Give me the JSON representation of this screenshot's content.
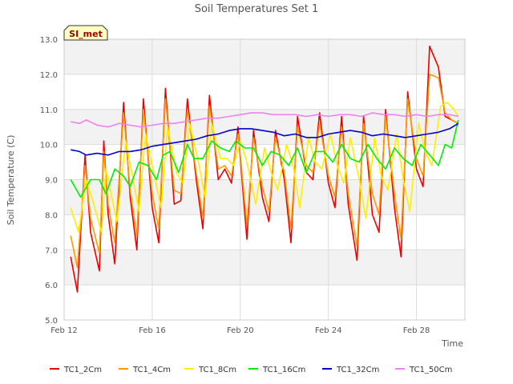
{
  "chart_data": {
    "type": "line",
    "title": "Soil Temperatures Set 1",
    "xlabel": "Time",
    "ylabel": "Soil Temperature (C)",
    "annotation": "SI_met",
    "xlim": [
      0,
      18.2
    ],
    "ylim": [
      5.0,
      13.0
    ],
    "x_unit": "days since Feb 12",
    "x_ticks": [
      {
        "x": 0,
        "label": "Feb 12"
      },
      {
        "x": 4,
        "label": "Feb 16"
      },
      {
        "x": 8,
        "label": "Feb 20"
      },
      {
        "x": 12,
        "label": "Feb 24"
      },
      {
        "x": 16,
        "label": "Feb 28"
      }
    ],
    "y_ticks": [
      "5.0",
      "6.0",
      "7.0",
      "8.0",
      "9.0",
      "10.0",
      "11.0",
      "12.0",
      "13.0"
    ],
    "grid": true,
    "banded_background": true,
    "legend_position": "bottom",
    "series": [
      {
        "name": "TC1_2Cm",
        "color": "#ee0000",
        "x": [
          0.3,
          0.6,
          0.95,
          1.2,
          1.6,
          1.8,
          2.0,
          2.3,
          2.7,
          3.0,
          3.3,
          3.6,
          4.0,
          4.3,
          4.6,
          5.0,
          5.3,
          5.6,
          6.0,
          6.3,
          6.6,
          7.0,
          7.3,
          7.6,
          7.9,
          8.0,
          8.3,
          8.6,
          9.0,
          9.3,
          9.6,
          10.0,
          10.3,
          10.6,
          11.0,
          11.3,
          11.6,
          12.0,
          12.3,
          12.6,
          12.9,
          13.3,
          13.6,
          14.0,
          14.3,
          14.6,
          15.0,
          15.3,
          15.6,
          16.0,
          16.3,
          16.6,
          17.0,
          17.3,
          17.6,
          17.9
        ],
        "y": [
          6.8,
          5.8,
          9.7,
          7.5,
          6.4,
          10.1,
          8.0,
          6.6,
          11.2,
          8.5,
          7.0,
          11.3,
          8.2,
          7.2,
          11.6,
          8.3,
          8.4,
          11.3,
          9.0,
          7.6,
          11.4,
          9.0,
          9.3,
          8.9,
          10.5,
          9.6,
          7.3,
          10.4,
          8.5,
          7.8,
          10.4,
          9.0,
          7.2,
          10.8,
          9.2,
          9.0,
          10.9,
          8.9,
          8.2,
          10.8,
          8.3,
          6.7,
          10.8,
          8.0,
          7.5,
          11.0,
          8.2,
          6.8,
          11.5,
          9.3,
          8.8,
          12.8,
          12.2,
          10.8,
          10.7,
          10.6
        ]
      },
      {
        "name": "TC1_4Cm",
        "color": "#ff9900",
        "x": [
          0.3,
          0.6,
          0.95,
          1.2,
          1.6,
          1.8,
          2.0,
          2.3,
          2.7,
          3.0,
          3.3,
          3.6,
          4.0,
          4.3,
          4.6,
          5.0,
          5.3,
          5.6,
          6.0,
          6.3,
          6.6,
          7.0,
          7.3,
          7.6,
          7.9,
          8.0,
          8.3,
          8.6,
          9.0,
          9.3,
          9.6,
          10.0,
          10.3,
          10.6,
          11.0,
          11.3,
          11.6,
          12.0,
          12.3,
          12.6,
          12.9,
          13.3,
          13.6,
          14.0,
          14.3,
          14.6,
          15.0,
          15.3,
          15.6,
          16.0,
          16.3,
          16.6,
          17.0,
          17.3,
          17.6,
          17.9
        ],
        "y": [
          7.4,
          6.5,
          9.4,
          7.9,
          6.9,
          9.8,
          8.3,
          7.2,
          10.9,
          8.7,
          7.4,
          11.0,
          8.6,
          7.6,
          11.3,
          8.7,
          8.6,
          11.0,
          9.2,
          7.9,
          11.1,
          9.3,
          9.4,
          9.1,
          10.3,
          9.7,
          7.7,
          10.2,
          8.8,
          8.1,
          10.2,
          9.2,
          7.6,
          10.5,
          9.4,
          9.2,
          10.6,
          9.1,
          8.5,
          10.5,
          8.6,
          7.1,
          10.6,
          8.6,
          8.0,
          10.8,
          8.6,
          7.3,
          11.3,
          9.6,
          9.1,
          12.0,
          11.9,
          10.9,
          10.7,
          10.6
        ]
      },
      {
        "name": "TC1_8Cm",
        "color": "#ffee00",
        "x": [
          0.3,
          0.65,
          1.0,
          1.3,
          1.7,
          1.9,
          2.1,
          2.4,
          2.8,
          3.1,
          3.4,
          3.7,
          4.1,
          4.4,
          4.7,
          5.1,
          5.4,
          5.7,
          6.1,
          6.4,
          6.7,
          7.1,
          7.4,
          7.7,
          8.0,
          8.3,
          8.7,
          9.1,
          9.4,
          9.7,
          10.1,
          10.4,
          10.7,
          11.1,
          11.4,
          11.7,
          12.1,
          12.4,
          12.7,
          13.0,
          13.4,
          13.7,
          14.1,
          14.4,
          14.7,
          15.1,
          15.4,
          15.7,
          16.1,
          16.4,
          16.7,
          17.1,
          17.4,
          17.7,
          17.9
        ],
        "y": [
          8.2,
          7.5,
          9.0,
          8.4,
          7.5,
          9.3,
          8.7,
          7.8,
          10.1,
          9.1,
          8.1,
          10.3,
          9.1,
          8.2,
          10.5,
          9.2,
          8.9,
          10.6,
          9.5,
          8.5,
          10.6,
          9.6,
          9.6,
          9.4,
          10.1,
          9.5,
          8.3,
          9.9,
          9.2,
          8.7,
          10.0,
          9.4,
          8.2,
          10.2,
          9.5,
          9.3,
          10.3,
          9.4,
          8.9,
          10.2,
          9.0,
          7.9,
          10.2,
          9.1,
          8.7,
          10.3,
          9.0,
          8.1,
          10.6,
          9.8,
          9.4,
          11.1,
          11.2,
          11.0,
          10.8
        ]
      },
      {
        "name": "TC1_16Cm",
        "color": "#00ee00",
        "x": [
          0.3,
          0.75,
          1.2,
          1.6,
          1.9,
          2.3,
          2.7,
          3.0,
          3.4,
          3.8,
          4.2,
          4.5,
          4.8,
          5.2,
          5.6,
          5.9,
          6.3,
          6.7,
          7.1,
          7.5,
          7.8,
          8.2,
          8.6,
          9.0,
          9.4,
          9.8,
          10.2,
          10.6,
          11.0,
          11.4,
          11.8,
          12.2,
          12.6,
          13.0,
          13.4,
          13.8,
          14.2,
          14.6,
          15.0,
          15.4,
          15.8,
          16.2,
          16.6,
          17.0,
          17.3,
          17.6,
          17.9
        ],
        "y": [
          9.0,
          8.5,
          9.0,
          9.0,
          8.6,
          9.3,
          9.1,
          8.8,
          9.5,
          9.4,
          9.0,
          9.7,
          9.8,
          9.2,
          10.0,
          9.6,
          9.6,
          10.1,
          9.9,
          9.8,
          10.1,
          9.9,
          9.9,
          9.4,
          9.8,
          9.7,
          9.4,
          9.9,
          9.2,
          9.8,
          9.8,
          9.5,
          10.0,
          9.6,
          9.5,
          10.0,
          9.6,
          9.3,
          9.9,
          9.6,
          9.4,
          10.0,
          9.7,
          9.4,
          10.0,
          9.9,
          10.7
        ]
      },
      {
        "name": "TC1_32Cm",
        "color": "#0000cc",
        "x": [
          0.3,
          0.7,
          1.0,
          1.5,
          2.0,
          2.5,
          3.0,
          3.5,
          4.0,
          4.5,
          5.0,
          5.5,
          6.0,
          6.5,
          7.0,
          7.5,
          8.0,
          8.5,
          9.0,
          9.5,
          10.0,
          10.5,
          11.0,
          11.5,
          12.0,
          12.5,
          13.0,
          13.5,
          14.0,
          14.5,
          15.0,
          15.5,
          16.0,
          16.5,
          17.0,
          17.5,
          17.9
        ],
        "y": [
          9.85,
          9.8,
          9.7,
          9.75,
          9.7,
          9.8,
          9.8,
          9.85,
          9.95,
          10.0,
          10.05,
          10.1,
          10.15,
          10.25,
          10.3,
          10.4,
          10.45,
          10.45,
          10.4,
          10.35,
          10.25,
          10.3,
          10.2,
          10.2,
          10.3,
          10.35,
          10.4,
          10.35,
          10.25,
          10.3,
          10.25,
          10.2,
          10.25,
          10.3,
          10.35,
          10.45,
          10.6
        ]
      },
      {
        "name": "TC1_50Cm",
        "color": "#ee82ee",
        "x": [
          0.3,
          0.7,
          1.0,
          1.5,
          2.0,
          2.5,
          3.0,
          3.5,
          4.0,
          4.5,
          5.0,
          5.5,
          6.0,
          6.5,
          7.0,
          7.5,
          8.0,
          8.5,
          9.0,
          9.5,
          10.0,
          10.5,
          11.0,
          11.5,
          12.0,
          12.5,
          13.0,
          13.5,
          14.0,
          14.5,
          15.0,
          15.5,
          16.0,
          16.5,
          17.0,
          17.5,
          17.9
        ],
        "y": [
          10.65,
          10.6,
          10.7,
          10.55,
          10.5,
          10.6,
          10.55,
          10.5,
          10.55,
          10.6,
          10.6,
          10.65,
          10.7,
          10.75,
          10.75,
          10.8,
          10.85,
          10.9,
          10.9,
          10.85,
          10.85,
          10.85,
          10.8,
          10.85,
          10.8,
          10.85,
          10.85,
          10.8,
          10.9,
          10.85,
          10.85,
          10.8,
          10.85,
          10.8,
          10.85,
          10.85,
          10.8
        ]
      }
    ]
  }
}
